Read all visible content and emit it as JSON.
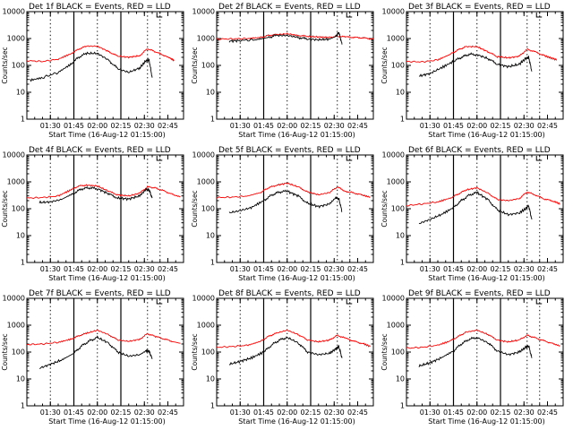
{
  "chart_data": [
    {
      "type": "line",
      "title": "Det 1f BLACK = Events, RED = LLD",
      "xlabel": "Start Time (16-Aug-12 01:15:00)",
      "ylabel": "Counts/sec",
      "log_y": true,
      "ylim": [
        1,
        10000
      ],
      "xlim_min": [
        0,
        100
      ],
      "x_tick_labels": [
        "01:30",
        "01:45",
        "02:00",
        "02:15",
        "02:30",
        "02:45"
      ],
      "x_tick_min": [
        15,
        30,
        45,
        60,
        75,
        90
      ],
      "solid_lines_min": [
        30,
        60
      ],
      "dotted_lines_min": [
        15,
        45,
        77,
        85
      ],
      "series": [
        {
          "color": "#ff0000",
          "x": [
            0,
            10,
            20,
            28,
            33,
            38,
            45,
            52,
            58,
            65,
            72,
            77,
            82,
            88,
            92,
            94
          ],
          "values": [
            150,
            140,
            170,
            270,
            400,
            520,
            520,
            330,
            220,
            200,
            230,
            420,
            320,
            230,
            180,
            150
          ]
        },
        {
          "color": "#000000",
          "x": [
            2,
            10,
            20,
            28,
            33,
            38,
            45,
            52,
            58,
            65,
            72,
            76,
            78,
            80
          ],
          "values": [
            28,
            35,
            55,
            110,
            200,
            280,
            280,
            160,
            75,
            55,
            80,
            150,
            160,
            35
          ]
        }
      ]
    },
    {
      "type": "line",
      "title": "Det 2f BLACK = Events, RED = LLD",
      "xlabel": "Start Time (16-Aug-12 01:15:00)",
      "ylabel": "Counts/sec",
      "log_y": true,
      "ylim": [
        1,
        10000
      ],
      "xlim_min": [
        0,
        100
      ],
      "x_tick_labels": [
        "01:30",
        "01:45",
        "02:00",
        "02:15",
        "02:30",
        "02:45"
      ],
      "x_tick_min": [
        15,
        30,
        45,
        60,
        75,
        90
      ],
      "solid_lines_min": [
        30,
        60
      ],
      "dotted_lines_min": [
        15,
        45,
        77,
        85
      ],
      "series": [
        {
          "color": "#ff0000",
          "x": [
            0,
            10,
            20,
            28,
            33,
            38,
            45,
            52,
            58,
            65,
            72,
            77,
            82,
            88,
            94,
            100
          ],
          "values": [
            950,
            970,
            1000,
            1100,
            1300,
            1400,
            1500,
            1300,
            1200,
            1150,
            1100,
            1200,
            1150,
            1100,
            1050,
            950
          ]
        },
        {
          "color": "#000000",
          "x": [
            8,
            15,
            25,
            33,
            38,
            45,
            52,
            58,
            65,
            72,
            76,
            78,
            80
          ],
          "values": [
            800,
            850,
            900,
            1100,
            1300,
            1300,
            1100,
            950,
            900,
            950,
            1200,
            1700,
            600
          ]
        }
      ]
    },
    {
      "type": "line",
      "title": "Det 3f BLACK = Events, RED = LLD",
      "xlabel": "Start Time (16-Aug-12 01:15:00)",
      "ylabel": "Counts/sec",
      "log_y": true,
      "ylim": [
        1,
        10000
      ],
      "xlim_min": [
        0,
        100
      ],
      "x_tick_labels": [
        "01:30",
        "01:45",
        "02:00",
        "02:15",
        "02:30",
        "02:45"
      ],
      "x_tick_min": [
        15,
        30,
        45,
        60,
        75,
        90
      ],
      "solid_lines_min": [
        30,
        60
      ],
      "dotted_lines_min": [
        15,
        45,
        77,
        85
      ],
      "series": [
        {
          "color": "#ff0000",
          "x": [
            0,
            10,
            20,
            28,
            33,
            38,
            45,
            52,
            58,
            65,
            72,
            77,
            82,
            88,
            92,
            96
          ],
          "values": [
            140,
            135,
            160,
            260,
            380,
            500,
            500,
            320,
            210,
            190,
            220,
            400,
            320,
            230,
            190,
            160
          ]
        },
        {
          "color": "#000000",
          "x": [
            8,
            15,
            22,
            30,
            35,
            40,
            45,
            52,
            58,
            65,
            72,
            76,
            78,
            80
          ],
          "values": [
            40,
            50,
            80,
            140,
            200,
            260,
            250,
            180,
            110,
            90,
            110,
            180,
            200,
            60
          ]
        }
      ]
    },
    {
      "type": "line",
      "title": "Det 4f BLACK = Events, RED = LLD",
      "xlabel": "Start Time (16-Aug-12 01:15:00)",
      "ylabel": "Counts/sec",
      "log_y": true,
      "ylim": [
        1,
        10000
      ],
      "xlim_min": [
        0,
        100
      ],
      "x_tick_labels": [
        "01:30",
        "01:45",
        "02:00",
        "02:15",
        "02:30",
        "02:45"
      ],
      "x_tick_min": [
        15,
        30,
        45,
        60,
        75,
        90
      ],
      "solid_lines_min": [
        30,
        60
      ],
      "dotted_lines_min": [
        15,
        45,
        77,
        85
      ],
      "series": [
        {
          "color": "#ff0000",
          "x": [
            0,
            10,
            20,
            28,
            33,
            38,
            45,
            52,
            58,
            65,
            72,
            77,
            82,
            88,
            94,
            98
          ],
          "values": [
            250,
            260,
            300,
            500,
            700,
            750,
            700,
            450,
            330,
            300,
            380,
            650,
            600,
            450,
            320,
            280
          ]
        },
        {
          "color": "#000000",
          "x": [
            8,
            15,
            22,
            30,
            35,
            40,
            45,
            52,
            58,
            65,
            72,
            76,
            78,
            80
          ],
          "values": [
            170,
            180,
            220,
            380,
            550,
            600,
            560,
            360,
            250,
            230,
            300,
            520,
            500,
            250
          ]
        }
      ]
    },
    {
      "type": "line",
      "title": "Det 5f BLACK = Events, RED = LLD",
      "xlabel": "Start Time (16-Aug-12 01:15:00)",
      "ylabel": "Counts/sec",
      "log_y": true,
      "ylim": [
        1,
        10000
      ],
      "xlim_min": [
        0,
        100
      ],
      "x_tick_labels": [
        "01:30",
        "01:45",
        "02:00",
        "02:15",
        "02:30",
        "02:45"
      ],
      "x_tick_min": [
        15,
        30,
        45,
        60,
        75,
        90
      ],
      "solid_lines_min": [
        30,
        60
      ],
      "dotted_lines_min": [
        15,
        45,
        77,
        85
      ],
      "series": [
        {
          "color": "#ff0000",
          "x": [
            0,
            10,
            20,
            28,
            33,
            38,
            45,
            52,
            58,
            65,
            72,
            77,
            82,
            88,
            94,
            98
          ],
          "values": [
            260,
            270,
            300,
            400,
            600,
            750,
            900,
            650,
            420,
            330,
            400,
            650,
            450,
            380,
            310,
            270
          ]
        },
        {
          "color": "#000000",
          "x": [
            8,
            15,
            22,
            30,
            35,
            40,
            45,
            52,
            58,
            65,
            72,
            76,
            78,
            80
          ],
          "values": [
            70,
            85,
            110,
            200,
            320,
            420,
            450,
            300,
            160,
            120,
            150,
            260,
            230,
            80
          ]
        }
      ]
    },
    {
      "type": "line",
      "title": "Det 6f BLACK = Events, RED = LLD",
      "xlabel": "Start Time (16-Aug-12 01:15:00)",
      "ylabel": "Counts/sec",
      "log_y": true,
      "ylim": [
        1,
        10000
      ],
      "xlim_min": [
        0,
        100
      ],
      "x_tick_labels": [
        "01:30",
        "01:45",
        "02:00",
        "02:15",
        "02:30",
        "02:45"
      ],
      "x_tick_min": [
        15,
        30,
        45,
        60,
        75,
        90
      ],
      "solid_lines_min": [
        30,
        60
      ],
      "dotted_lines_min": [
        15,
        45,
        77,
        85
      ],
      "series": [
        {
          "color": "#ff0000",
          "x": [
            0,
            10,
            20,
            28,
            33,
            38,
            45,
            52,
            58,
            65,
            72,
            77,
            82,
            88,
            94,
            98
          ],
          "values": [
            130,
            150,
            180,
            250,
            350,
            500,
            600,
            380,
            220,
            200,
            240,
            420,
            330,
            230,
            190,
            150
          ]
        },
        {
          "color": "#000000",
          "x": [
            8,
            15,
            22,
            30,
            35,
            40,
            45,
            52,
            58,
            65,
            72,
            76,
            78,
            80
          ],
          "values": [
            28,
            40,
            60,
            110,
            200,
            320,
            400,
            220,
            90,
            60,
            70,
            100,
            130,
            40
          ]
        }
      ]
    },
    {
      "type": "line",
      "title": "Det 7f BLACK = Events, RED = LLD",
      "xlabel": "Start Time (16-Aug-12 01:15:00)",
      "ylabel": "Counts/sec",
      "log_y": true,
      "ylim": [
        1,
        10000
      ],
      "xlim_min": [
        0,
        100
      ],
      "x_tick_labels": [
        "01:30",
        "01:45",
        "02:00",
        "02:15",
        "02:30",
        "02:45"
      ],
      "x_tick_min": [
        15,
        30,
        45,
        60,
        75,
        90
      ],
      "solid_lines_min": [
        30,
        60
      ],
      "dotted_lines_min": [
        15,
        45,
        77,
        85
      ],
      "series": [
        {
          "color": "#ff0000",
          "x": [
            0,
            10,
            20,
            28,
            33,
            38,
            45,
            52,
            58,
            65,
            72,
            77,
            82,
            88,
            94,
            98
          ],
          "values": [
            190,
            200,
            230,
            300,
            400,
            500,
            650,
            450,
            280,
            250,
            300,
            480,
            380,
            300,
            240,
            210
          ]
        },
        {
          "color": "#000000",
          "x": [
            8,
            15,
            22,
            30,
            35,
            40,
            45,
            52,
            58,
            65,
            72,
            76,
            78,
            80
          ],
          "values": [
            25,
            35,
            50,
            90,
            170,
            260,
            350,
            220,
            100,
            70,
            80,
            110,
            110,
            55
          ]
        }
      ]
    },
    {
      "type": "line",
      "title": "Det 8f BLACK = Events, RED = LLD",
      "xlabel": "Start Time (16-Aug-12 01:15:00)",
      "ylabel": "Counts/sec",
      "log_y": true,
      "ylim": [
        1,
        10000
      ],
      "xlim_min": [
        0,
        100
      ],
      "x_tick_labels": [
        "01:30",
        "01:45",
        "02:00",
        "02:15",
        "02:30",
        "02:45"
      ],
      "x_tick_min": [
        15,
        30,
        45,
        60,
        75,
        90
      ],
      "solid_lines_min": [
        30,
        60
      ],
      "dotted_lines_min": [
        15,
        45,
        77,
        85
      ],
      "series": [
        {
          "color": "#ff0000",
          "x": [
            0,
            10,
            20,
            28,
            33,
            38,
            45,
            52,
            58,
            65,
            72,
            77,
            82,
            88,
            94,
            98
          ],
          "values": [
            150,
            160,
            180,
            250,
            380,
            500,
            650,
            450,
            280,
            240,
            280,
            420,
            330,
            250,
            200,
            160
          ]
        },
        {
          "color": "#000000",
          "x": [
            8,
            15,
            22,
            30,
            35,
            40,
            45,
            52,
            58,
            65,
            72,
            76,
            78,
            80
          ],
          "values": [
            35,
            45,
            60,
            100,
            180,
            280,
            350,
            220,
            100,
            80,
            90,
            130,
            160,
            60
          ]
        }
      ]
    },
    {
      "type": "line",
      "title": "Det 9f BLACK = Events, RED = LLD",
      "xlabel": "Start Time (16-Aug-12 01:15:00)",
      "ylabel": "Counts/sec",
      "log_y": true,
      "ylim": [
        1,
        10000
      ],
      "xlim_min": [
        0,
        100
      ],
      "x_tick_labels": [
        "01:30",
        "01:45",
        "02:00",
        "02:15",
        "02:30",
        "02:45"
      ],
      "x_tick_min": [
        15,
        30,
        45,
        60,
        75,
        90
      ],
      "solid_lines_min": [
        30,
        60
      ],
      "dotted_lines_min": [
        15,
        45,
        77,
        85
      ],
      "series": [
        {
          "color": "#ff0000",
          "x": [
            0,
            10,
            20,
            28,
            33,
            38,
            45,
            52,
            58,
            65,
            72,
            77,
            82,
            88,
            94,
            98
          ],
          "values": [
            140,
            150,
            180,
            260,
            380,
            550,
            650,
            450,
            280,
            240,
            280,
            420,
            340,
            260,
            200,
            170
          ]
        },
        {
          "color": "#000000",
          "x": [
            8,
            15,
            22,
            30,
            35,
            40,
            45,
            52,
            58,
            65,
            72,
            76,
            78,
            80
          ],
          "values": [
            30,
            40,
            60,
            110,
            200,
            300,
            350,
            220,
            110,
            80,
            100,
            150,
            170,
            60
          ]
        }
      ]
    }
  ]
}
